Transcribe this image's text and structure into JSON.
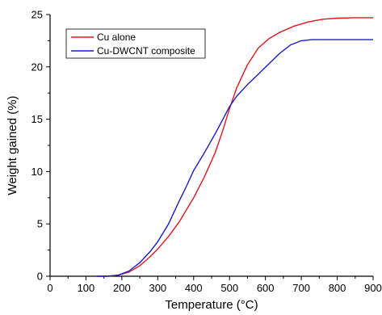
{
  "chart_data": {
    "type": "line",
    "title": "",
    "xlabel": "Temperature (°C)",
    "ylabel": "Weight gained (%)",
    "xlim": [
      0,
      900
    ],
    "ylim": [
      0,
      25
    ],
    "xticks": [
      0,
      100,
      200,
      300,
      400,
      500,
      600,
      700,
      800,
      900
    ],
    "yticks": [
      0,
      5,
      10,
      15,
      20,
      25
    ],
    "grid": false,
    "legend_position": "top-left",
    "series": [
      {
        "name": "Cu alone",
        "color": "#e8141c",
        "x": [
          130,
          160,
          190,
          220,
          250,
          280,
          300,
          330,
          360,
          400,
          430,
          460,
          480,
          500,
          520,
          550,
          580,
          610,
          640,
          680,
          720,
          760,
          800,
          850,
          900
        ],
        "y": [
          0,
          0,
          0.1,
          0.4,
          1.0,
          1.9,
          2.6,
          3.8,
          5.2,
          7.5,
          9.5,
          11.8,
          13.8,
          16.0,
          18.0,
          20.2,
          21.8,
          22.7,
          23.3,
          23.9,
          24.3,
          24.55,
          24.65,
          24.7,
          24.7
        ]
      },
      {
        "name": "Cu-DWCNT composite",
        "color": "#1a1ad8",
        "x": [
          130,
          160,
          190,
          220,
          250,
          280,
          300,
          330,
          360,
          380,
          400,
          430,
          460,
          480,
          500,
          520,
          550,
          580,
          610,
          640,
          670,
          700,
          730,
          760,
          800,
          850,
          900
        ],
        "y": [
          0,
          0,
          0.1,
          0.5,
          1.3,
          2.4,
          3.3,
          5.0,
          7.2,
          8.6,
          10.1,
          11.8,
          13.6,
          14.9,
          16.2,
          17.2,
          18.3,
          19.3,
          20.3,
          21.3,
          22.1,
          22.5,
          22.6,
          22.6,
          22.6,
          22.6,
          22.6
        ]
      }
    ]
  }
}
